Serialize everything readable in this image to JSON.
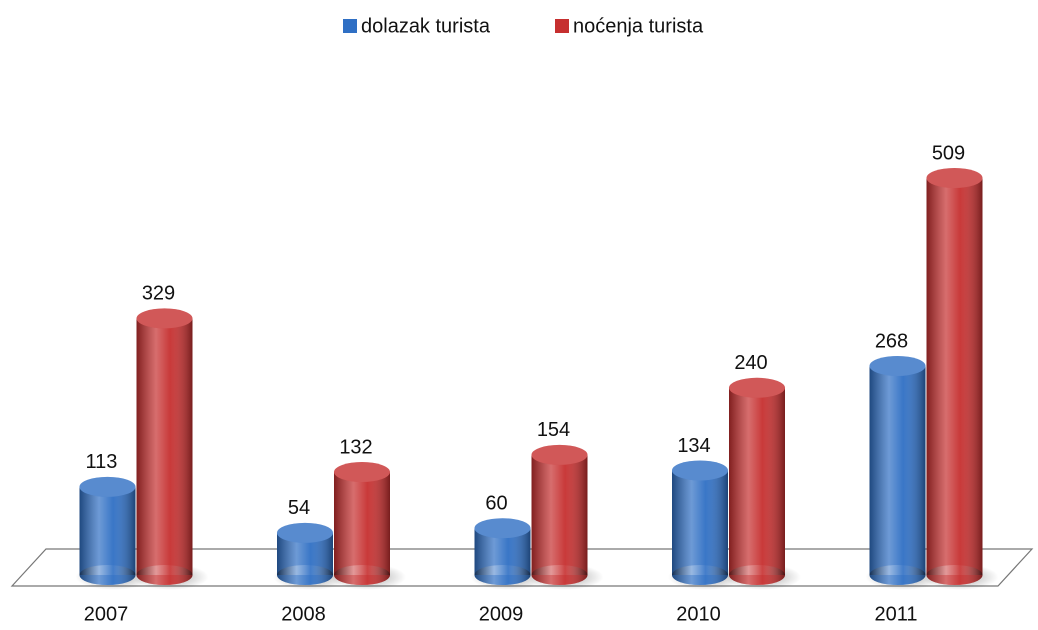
{
  "chart_data": {
    "type": "bar",
    "categories": [
      "2007",
      "2008",
      "2009",
      "2010",
      "2011"
    ],
    "series": [
      {
        "name": "dolazak turista",
        "color": "#2f6fc4",
        "values": [
          113,
          54,
          60,
          134,
          268
        ]
      },
      {
        "name": "noćenja turista",
        "color": "#c62f2f",
        "values": [
          329,
          132,
          154,
          240,
          509
        ]
      }
    ],
    "legend": "top"
  }
}
